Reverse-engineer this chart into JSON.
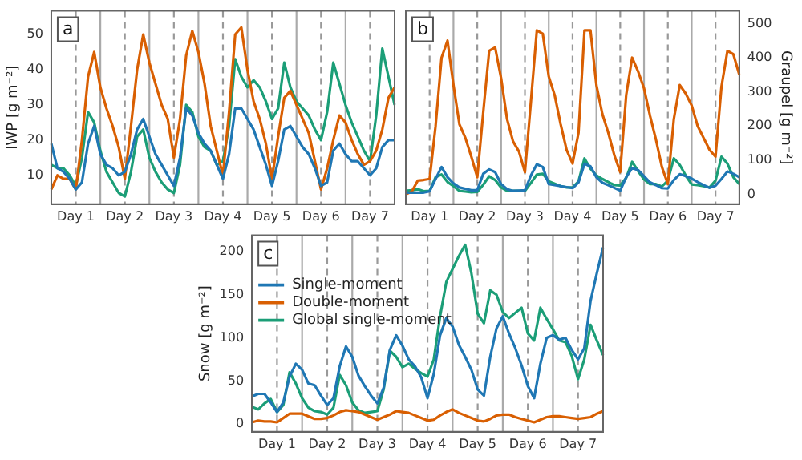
{
  "chart_data": [
    {
      "type": "line",
      "annotations": [
        "a"
      ],
      "ylabel": "IWP [g m⁻²]",
      "ylim": [
        1.8,
        56.7
      ],
      "yticks": [
        10,
        20,
        30,
        40,
        50
      ],
      "legend": false,
      "grid": "x",
      "categories": [
        null,
        null,
        null,
        null,
        "Day 1",
        null,
        null,
        null,
        null,
        null,
        null,
        null,
        "Day 2",
        null,
        null,
        null,
        null,
        null,
        null,
        null,
        "Day 3",
        null,
        null,
        null,
        null,
        null,
        null,
        null,
        "Day 4",
        null,
        null,
        null,
        null,
        null,
        null,
        null,
        "Day 5",
        null,
        null,
        null,
        null,
        null,
        null,
        null,
        "Day 6",
        null,
        null,
        null,
        null,
        null,
        null,
        null,
        "Day 7",
        null,
        null,
        null,
        null
      ],
      "series": [
        {
          "color": "#1f77b4",
          "values": [
            19,
            12,
            11,
            9,
            6,
            8,
            19,
            24,
            16,
            13,
            12,
            10,
            11,
            16,
            23,
            26,
            21,
            16,
            13,
            10,
            7,
            15,
            29,
            27,
            22,
            19,
            17,
            13,
            9,
            16,
            29,
            29,
            26,
            23,
            18,
            13,
            7,
            14,
            23,
            24,
            21,
            18,
            16,
            12,
            7,
            8,
            17,
            19,
            16,
            14,
            14,
            12,
            10,
            12,
            18,
            20,
            20
          ]
        },
        {
          "color": "#d95f02",
          "values": [
            6,
            10,
            9,
            9,
            6,
            20,
            38,
            45,
            35,
            29,
            24,
            18,
            9,
            24,
            40,
            50,
            42,
            36,
            30,
            26,
            15,
            26,
            44,
            51,
            45,
            36,
            24,
            17,
            10,
            28,
            50,
            52,
            40,
            31,
            26,
            19,
            9,
            21,
            32,
            34,
            30,
            26,
            22,
            14,
            6,
            12,
            20,
            27,
            25,
            20,
            16,
            13,
            14,
            17,
            23,
            32,
            35
          ]
        },
        {
          "color": "#1b9e77",
          "values": [
            13,
            12,
            12,
            10,
            7,
            15,
            28,
            25,
            17,
            11,
            8,
            5,
            4,
            11,
            21,
            23,
            15,
            11,
            8,
            6,
            5,
            13,
            30,
            28,
            21,
            18,
            17,
            13,
            14,
            24,
            43,
            38,
            35,
            37,
            35,
            31,
            26,
            29,
            42,
            35,
            31,
            29,
            27,
            23,
            20,
            28,
            42,
            36,
            30,
            25,
            21,
            17,
            14,
            27,
            46,
            38,
            30
          ]
        }
      ]
    },
    {
      "type": "line",
      "annotations": [
        "b"
      ],
      "y2label": "Graupel [g m⁻²]",
      "y2lim": [
        -29,
        537
      ],
      "y2ticks": [
        0,
        100,
        200,
        300,
        400,
        500
      ],
      "legend": false,
      "grid": "x",
      "categories": [
        null,
        null,
        null,
        null,
        "Day 1",
        null,
        null,
        null,
        null,
        null,
        null,
        null,
        "Day 2",
        null,
        null,
        null,
        null,
        null,
        null,
        null,
        "Day 3",
        null,
        null,
        null,
        null,
        null,
        null,
        null,
        "Day 4",
        null,
        null,
        null,
        null,
        null,
        null,
        null,
        "Day 5",
        null,
        null,
        null,
        null,
        null,
        null,
        null,
        "Day 6",
        null,
        null,
        null,
        null,
        null,
        null,
        null,
        "Day 7",
        null,
        null,
        null,
        null
      ],
      "series": [
        {
          "color": "#1f77b4",
          "axis": "y2",
          "values": [
            5,
            5,
            5,
            5,
            9,
            45,
            80,
            50,
            32,
            20,
            16,
            12,
            12,
            60,
            73,
            65,
            30,
            15,
            10,
            11,
            12,
            55,
            88,
            80,
            30,
            27,
            24,
            21,
            18,
            35,
            89,
            82,
            50,
            34,
            27,
            19,
            11,
            50,
            77,
            71,
            53,
            35,
            27,
            18,
            17,
            42,
            59,
            53,
            46,
            36,
            27,
            19,
            25,
            45,
            67,
            60,
            50
          ]
        },
        {
          "color": "#d95f02",
          "axis": "y2",
          "values": [
            0,
            8,
            40,
            42,
            45,
            200,
            400,
            450,
            320,
            205,
            165,
            110,
            50,
            240,
            420,
            430,
            340,
            220,
            155,
            125,
            65,
            270,
            480,
            470,
            345,
            290,
            205,
            130,
            90,
            180,
            480,
            480,
            320,
            235,
            180,
            115,
            65,
            290,
            400,
            360,
            310,
            230,
            160,
            80,
            30,
            220,
            320,
            295,
            260,
            200,
            165,
            130,
            110,
            315,
            420,
            410,
            350
          ]
        },
        {
          "color": "#1b9e77",
          "axis": "y2",
          "values": [
            10,
            12,
            15,
            9,
            10,
            50,
            58,
            36,
            24,
            10,
            8,
            6,
            7,
            28,
            53,
            42,
            20,
            10,
            10,
            10,
            10,
            33,
            58,
            60,
            38,
            31,
            24,
            20,
            20,
            38,
            105,
            75,
            55,
            45,
            36,
            27,
            26,
            48,
            95,
            68,
            44,
            30,
            30,
            23,
            40,
            105,
            86,
            55,
            29,
            27,
            24,
            20,
            40,
            110,
            90,
            50,
            30
          ]
        }
      ]
    },
    {
      "type": "line",
      "annotations": [
        "c"
      ],
      "ylabel": "Snow [g m⁻²]",
      "ylim": [
        -9,
        219
      ],
      "yticks": [
        0,
        50,
        100,
        150,
        200
      ],
      "legend": "top left",
      "grid": "x",
      "categories": [
        null,
        null,
        null,
        null,
        "Day 1",
        null,
        null,
        null,
        null,
        null,
        null,
        null,
        "Day 2",
        null,
        null,
        null,
        null,
        null,
        null,
        null,
        "Day 3",
        null,
        null,
        null,
        null,
        null,
        null,
        null,
        "Day 4",
        null,
        null,
        null,
        null,
        null,
        null,
        null,
        "Day 5",
        null,
        null,
        null,
        null,
        null,
        null,
        null,
        "Day 6",
        null,
        null,
        null,
        null,
        null,
        null,
        null,
        "Day 7",
        null,
        null,
        null,
        null
      ],
      "series": [
        {
          "name": "Single-moment",
          "color": "#1f77b4",
          "values": [
            32,
            35,
            35,
            25,
            14,
            25,
            55,
            70,
            63,
            47,
            45,
            33,
            22,
            30,
            67,
            90,
            78,
            56,
            44,
            33,
            24,
            42,
            86,
            103,
            91,
            75,
            67,
            54,
            30,
            58,
            103,
            123,
            113,
            92,
            78,
            63,
            40,
            33,
            78,
            111,
            125,
            105,
            88,
            68,
            44,
            30,
            70,
            100,
            103,
            98,
            100,
            86,
            75,
            88,
            143,
            175,
            205
          ]
        },
        {
          "name": "Double-moment",
          "color": "#d95f02",
          "values": [
            2,
            4,
            3,
            3,
            2,
            7,
            12,
            12,
            12,
            9,
            6,
            6,
            7,
            10,
            14,
            16,
            15,
            14,
            11,
            8,
            5,
            8,
            11,
            15,
            14,
            13,
            10,
            7,
            4,
            5,
            10,
            14,
            17,
            13,
            10,
            7,
            4,
            3,
            6,
            10,
            11,
            11,
            8,
            6,
            4,
            2,
            5,
            8,
            9,
            9,
            8,
            7,
            6,
            7,
            8,
            12,
            15
          ]
        },
        {
          "name": "Global single-moment",
          "color": "#1b9e77",
          "values": [
            20,
            17,
            24,
            29,
            14,
            22,
            60,
            47,
            30,
            19,
            15,
            14,
            11,
            19,
            57,
            45,
            25,
            16,
            13,
            14,
            15,
            40,
            85,
            78,
            66,
            70,
            64,
            59,
            55,
            75,
            125,
            165,
            180,
            195,
            208,
            175,
            128,
            117,
            155,
            150,
            130,
            123,
            129,
            135,
            105,
            97,
            135,
            122,
            110,
            97,
            95,
            79,
            52,
            75,
            115,
            97,
            80
          ]
        }
      ]
    }
  ]
}
